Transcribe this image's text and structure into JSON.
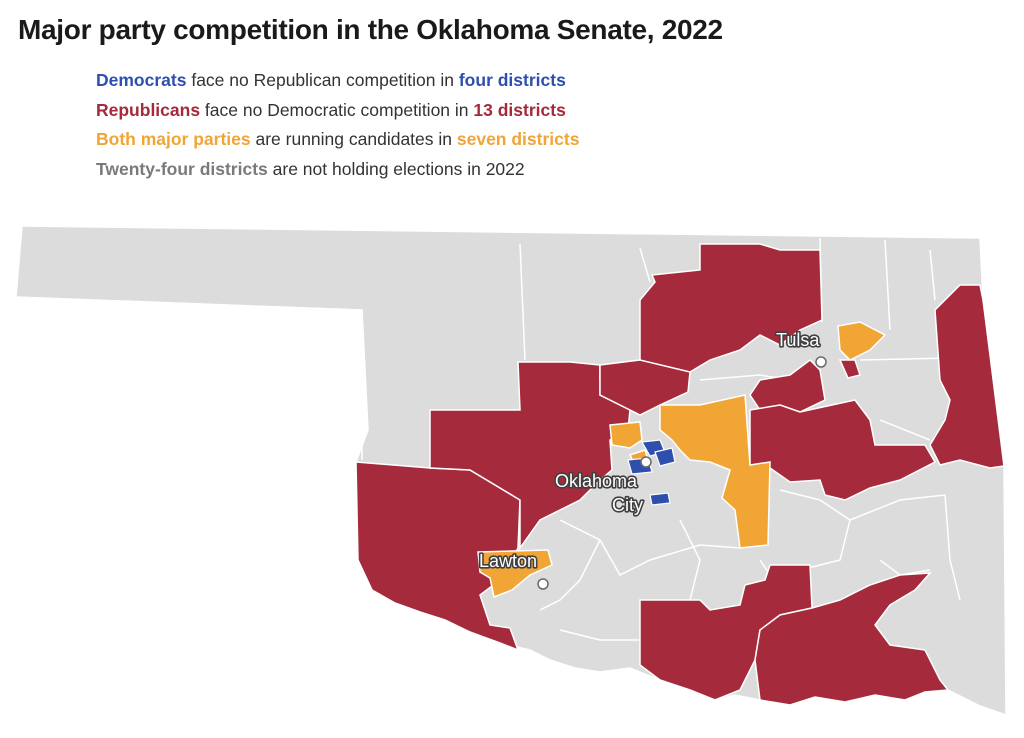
{
  "title": "Major party competition in the Oklahoma Senate, 2022",
  "colors": {
    "democrat": "#2f4fae",
    "republican": "#a52a3c",
    "both": "#f0a535",
    "no_election": "#dcdcdc",
    "border": "#ffffff"
  },
  "legend": [
    {
      "lead": "Democrats",
      "middle": " face no Republican competition in ",
      "tail": "four districts",
      "color": "#2f4fae"
    },
    {
      "lead": "Republicans",
      "middle": " face no Democratic competition in ",
      "tail": "13 districts",
      "color": "#a52a3c"
    },
    {
      "lead": "Both major parties",
      "middle": " are running candidates in ",
      "tail": "seven districts",
      "color": "#f0a535"
    },
    {
      "lead": "Twenty-four districts",
      "middle": " are not holding elections in 2022",
      "tail": "",
      "color": "#7a7a7a"
    }
  ],
  "cities": {
    "tulsa": "Tulsa",
    "oklahoma_city_line1": "Oklahoma",
    "oklahoma_city_line2": "City",
    "lawton": "Lawton"
  }
}
